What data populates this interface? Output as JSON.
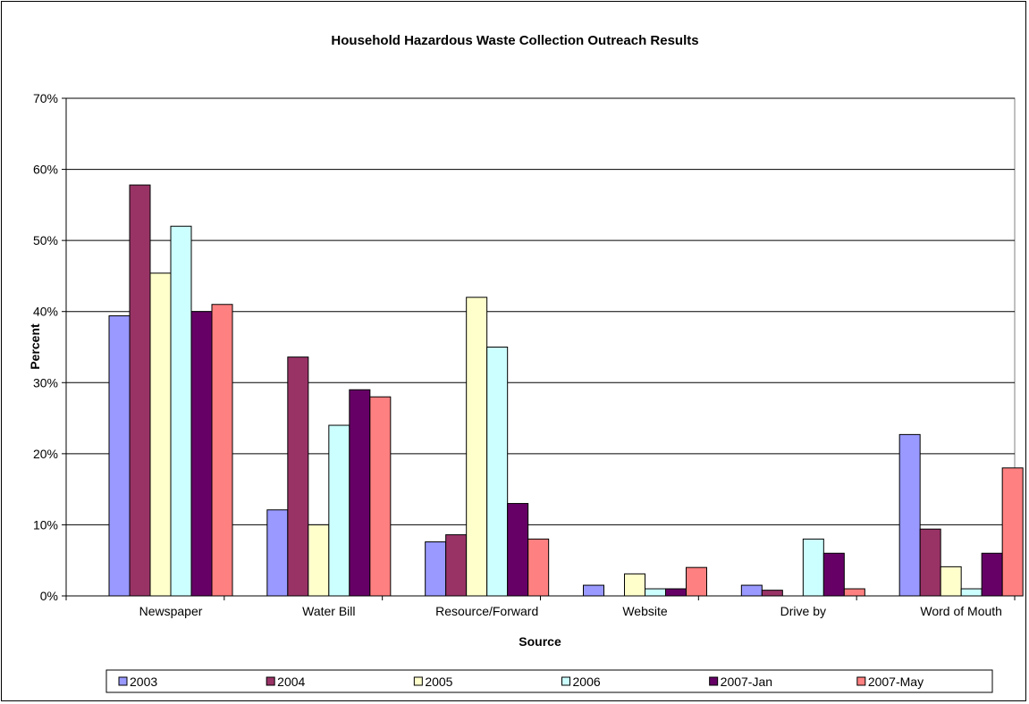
{
  "chart_data": {
    "type": "bar",
    "title": "Household Hazardous Waste Collection Outreach Results",
    "xlabel": "Source",
    "ylabel": "Percent",
    "ylim": [
      0,
      70
    ],
    "yticks": [
      "0%",
      "10%",
      "20%",
      "30%",
      "40%",
      "50%",
      "60%",
      "70%"
    ],
    "grid": true,
    "legend_position": "bottom",
    "categories": [
      "Newspaper",
      "Water Bill",
      "Resource/Forward",
      "Website",
      "Drive by",
      "Word of Mouth"
    ],
    "series": [
      {
        "name": "2003",
        "color": "#9999FF",
        "values": [
          39.4,
          12.1,
          7.6,
          1.5,
          1.5,
          22.7
        ]
      },
      {
        "name": "2004",
        "color": "#993366",
        "values": [
          57.8,
          33.6,
          8.6,
          0,
          0.8,
          9.4
        ]
      },
      {
        "name": "2005",
        "color": "#FFFFCC",
        "values": [
          45.4,
          10,
          42,
          3.1,
          0,
          4.1
        ]
      },
      {
        "name": "2006",
        "color": "#CCFFFF",
        "values": [
          52,
          24,
          35,
          1,
          8,
          1
        ]
      },
      {
        "name": "2007-Jan",
        "color": "#660066",
        "values": [
          40,
          29,
          13,
          1,
          6,
          6
        ]
      },
      {
        "name": "2007-May",
        "color": "#FF8080",
        "values": [
          41,
          28,
          8,
          4,
          1,
          18
        ]
      }
    ]
  }
}
